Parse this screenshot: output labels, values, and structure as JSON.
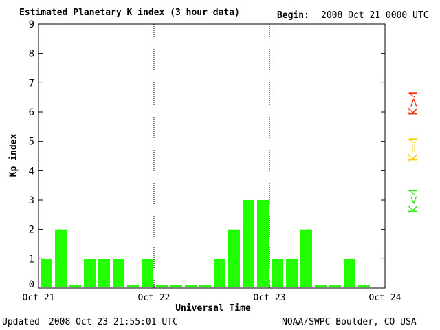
{
  "header": {
    "title": "Estimated Planetary K index (3 hour data)",
    "begin_label": "Begin:",
    "begin_value": "2008 Oct 21 0000 UTC"
  },
  "footer": {
    "updated_label": "Updated",
    "updated_value": "2008 Oct 23 21:55:01 UTC",
    "credit": "NOAA/SWPC Boulder, CO USA"
  },
  "legend": {
    "high": {
      "label": "K>4",
      "color": "#ff2200"
    },
    "equal": {
      "label": "K=4",
      "color": "#ffcc00"
    },
    "low": {
      "label": "K<4",
      "color": "#22ee00"
    }
  },
  "chart_data": {
    "type": "bar",
    "title": "Estimated Planetary K index (3 hour data)",
    "xlabel": "Universal Time",
    "ylabel": "Kp index",
    "ylim": [
      0,
      9
    ],
    "yticks": [
      0,
      1,
      2,
      3,
      4,
      5,
      6,
      7,
      8,
      9
    ],
    "xtick_labels": [
      "Oct 21",
      "Oct 22",
      "Oct 23",
      "Oct 24"
    ],
    "day_dividers": [
      "Oct 22",
      "Oct 23"
    ],
    "interval_hours": 3,
    "bar_color": "#22ff00",
    "values": [
      1,
      2,
      0,
      1,
      1,
      1,
      0,
      1,
      0,
      0,
      0,
      0,
      1,
      2,
      3,
      3,
      1,
      1,
      2,
      0,
      0,
      1,
      0
    ],
    "grid": false
  }
}
